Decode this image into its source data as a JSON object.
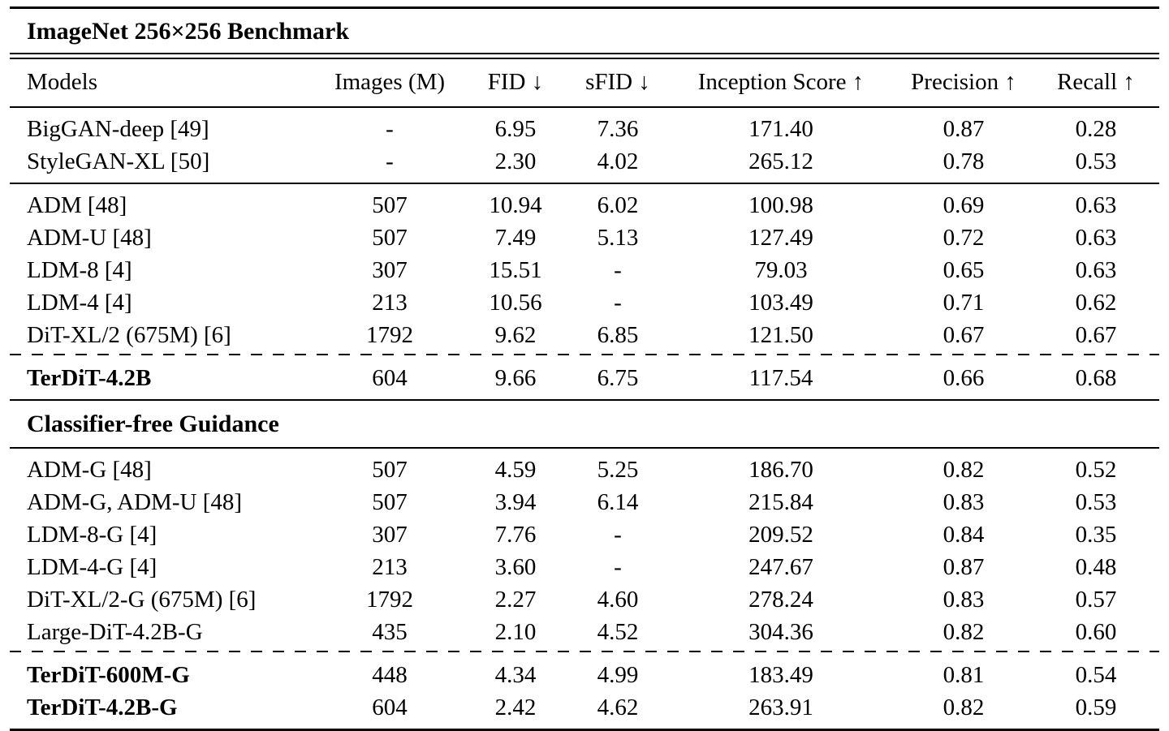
{
  "table": {
    "title": "ImageNet 256×256 Benchmark",
    "columns": [
      "Models",
      "Images (M)",
      "FID ↓",
      "sFID ↓",
      "Inception Score ↑",
      "Precision ↑",
      "Recall ↑"
    ],
    "benchmark": {
      "gan_rows": [
        {
          "bold": false,
          "cells": [
            "BigGAN-deep [49]",
            "-",
            "6.95",
            "7.36",
            "171.40",
            "0.87",
            "0.28"
          ]
        },
        {
          "bold": false,
          "cells": [
            "StyleGAN-XL [50]",
            "-",
            "2.30",
            "4.02",
            "265.12",
            "0.78",
            "0.53"
          ]
        }
      ],
      "diffusion_rows": [
        {
          "bold": false,
          "cells": [
            "ADM [48]",
            "507",
            "10.94",
            "6.02",
            "100.98",
            "0.69",
            "0.63"
          ]
        },
        {
          "bold": false,
          "cells": [
            "ADM-U [48]",
            "507",
            "7.49",
            "5.13",
            "127.49",
            "0.72",
            "0.63"
          ]
        },
        {
          "bold": false,
          "cells": [
            "LDM-8 [4]",
            "307",
            "15.51",
            "-",
            "79.03",
            "0.65",
            "0.63"
          ]
        },
        {
          "bold": false,
          "cells": [
            "LDM-4 [4]",
            "213",
            "10.56",
            "-",
            "103.49",
            "0.71",
            "0.62"
          ]
        },
        {
          "bold": false,
          "cells": [
            "DiT-XL/2 (675M) [6]",
            "1792",
            "9.62",
            "6.85",
            "121.50",
            "0.67",
            "0.67"
          ]
        }
      ],
      "terdit_rows": [
        {
          "bold": true,
          "cells": [
            "TerDiT-4.2B",
            "604",
            "9.66",
            "6.75",
            "117.54",
            "0.66",
            "0.68"
          ]
        }
      ]
    },
    "guidance": {
      "title": "Classifier-free Guidance",
      "rows": [
        {
          "bold": false,
          "cells": [
            "ADM-G [48]",
            "507",
            "4.59",
            "5.25",
            "186.70",
            "0.82",
            "0.52"
          ]
        },
        {
          "bold": false,
          "cells": [
            "ADM-G, ADM-U [48]",
            "507",
            "3.94",
            "6.14",
            "215.84",
            "0.83",
            "0.53"
          ]
        },
        {
          "bold": false,
          "cells": [
            "LDM-8-G [4]",
            "307",
            "7.76",
            "-",
            "209.52",
            "0.84",
            "0.35"
          ]
        },
        {
          "bold": false,
          "cells": [
            "LDM-4-G [4]",
            "213",
            "3.60",
            "-",
            "247.67",
            "0.87",
            "0.48"
          ]
        },
        {
          "bold": false,
          "cells": [
            "DiT-XL/2-G (675M) [6]",
            "1792",
            "2.27",
            "4.60",
            "278.24",
            "0.83",
            "0.57"
          ]
        },
        {
          "bold": false,
          "cells": [
            "Large-DiT-4.2B-G",
            "435",
            "2.10",
            "4.52",
            "304.36",
            "0.82",
            "0.60"
          ]
        }
      ],
      "terdit_rows": [
        {
          "bold": true,
          "cells": [
            "TerDiT-600M-G",
            "448",
            "4.34",
            "4.99",
            "183.49",
            "0.81",
            "0.54"
          ]
        },
        {
          "bold": true,
          "cells": [
            "TerDiT-4.2B-G",
            "604",
            "2.42",
            "4.62",
            "263.91",
            "0.82",
            "0.59"
          ]
        }
      ]
    }
  }
}
